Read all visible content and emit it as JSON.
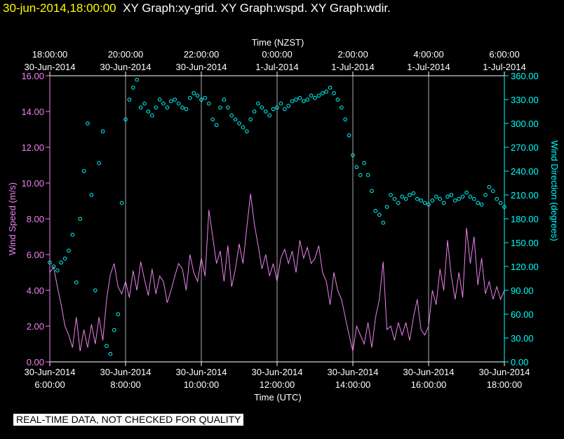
{
  "header": {
    "timestamp": "30-jun-2014,18:00:00",
    "graph_titles": "XY Graph:xy-grid.  XY Graph:wspd.  XY Graph:wdir."
  },
  "disclaimer": "REAL-TIME DATA, NOT CHECKED FOR QUALITY",
  "colors": {
    "background": "#000000",
    "axes": "#ffffff",
    "grid": "#ffffff",
    "wspd": "#ee82ee",
    "wdir": "#00ffff",
    "timestamp": "#ffff00",
    "disclaimer_bg": "#ffffff"
  },
  "chart_data": {
    "type": "line",
    "x_bottom": {
      "label": "Time (UTC)",
      "range_hours": [
        6,
        18
      ],
      "ticks": [
        {
          "h": 6,
          "line1": "30-Jun-2014",
          "line2": "6:00:00"
        },
        {
          "h": 8,
          "line1": "30-Jun-2014",
          "line2": "8:00:00"
        },
        {
          "h": 10,
          "line1": "30-Jun-2014",
          "line2": "10:00:00"
        },
        {
          "h": 12,
          "line1": "30-Jun-2014",
          "line2": "12:00:00"
        },
        {
          "h": 14,
          "line1": "30-Jun-2014",
          "line2": "14:00:00"
        },
        {
          "h": 16,
          "line1": "30-Jun-2014",
          "line2": "16:00:00"
        },
        {
          "h": 18,
          "line1": "30-Jun-2014",
          "line2": "18:00:00"
        }
      ]
    },
    "x_top": {
      "label": "Time (NZST)",
      "ticks": [
        {
          "h": 6,
          "line1": "18:00:00",
          "line2": "30-Jun-2014"
        },
        {
          "h": 8,
          "line1": "20:00:00",
          "line2": "30-Jun-2014"
        },
        {
          "h": 10,
          "line1": "22:00:00",
          "line2": "30-Jun-2014"
        },
        {
          "h": 12,
          "line1": "0:00:00",
          "line2": "1-Jul-2014"
        },
        {
          "h": 14,
          "line1": "2:00:00",
          "line2": "1-Jul-2014"
        },
        {
          "h": 16,
          "line1": "4:00:00",
          "line2": "1-Jul-2014"
        },
        {
          "h": 18,
          "line1": "6:00:00",
          "line2": "1-Jul-2014"
        }
      ]
    },
    "y_left": {
      "label": "Wind Speed (m/s)",
      "range": [
        0,
        16
      ],
      "ticks": [
        "0.00",
        "2.00",
        "4.00",
        "6.00",
        "8.00",
        "10.00",
        "12.00",
        "14.00",
        "16.00"
      ]
    },
    "y_right": {
      "label": "Wind Direction (degrees)",
      "range": [
        0,
        360
      ],
      "ticks": [
        "0.00",
        "30.00",
        "60.00",
        "90.00",
        "120.00",
        "150.00",
        "180.00",
        "210.00",
        "240.00",
        "270.00",
        "300.00",
        "330.00",
        "360.00"
      ]
    },
    "grid": true,
    "series": [
      {
        "key": "wspd",
        "style": "line",
        "axis": "left",
        "points": [
          [
            6.0,
            5.0
          ],
          [
            6.1,
            5.3
          ],
          [
            6.2,
            4.2
          ],
          [
            6.3,
            3.2
          ],
          [
            6.4,
            2.0
          ],
          [
            6.5,
            1.5
          ],
          [
            6.6,
            0.8
          ],
          [
            6.7,
            2.5
          ],
          [
            6.8,
            0.6
          ],
          [
            6.9,
            1.8
          ],
          [
            7.0,
            0.8
          ],
          [
            7.1,
            2.1
          ],
          [
            7.2,
            1.0
          ],
          [
            7.3,
            2.5
          ],
          [
            7.4,
            1.2
          ],
          [
            7.5,
            3.5
          ],
          [
            7.6,
            4.9
          ],
          [
            7.7,
            5.5
          ],
          [
            7.8,
            4.2
          ],
          [
            7.9,
            3.8
          ],
          [
            8.0,
            4.5
          ],
          [
            8.1,
            3.6
          ],
          [
            8.2,
            5.1
          ],
          [
            8.3,
            4.0
          ],
          [
            8.4,
            5.6
          ],
          [
            8.5,
            4.6
          ],
          [
            8.6,
            3.7
          ],
          [
            8.7,
            5.2
          ],
          [
            8.8,
            3.8
          ],
          [
            8.9,
            4.8
          ],
          [
            9.0,
            4.5
          ],
          [
            9.1,
            3.3
          ],
          [
            9.2,
            4.0
          ],
          [
            9.3,
            4.8
          ],
          [
            9.4,
            5.5
          ],
          [
            9.5,
            5.2
          ],
          [
            9.6,
            4.0
          ],
          [
            9.7,
            6.0
          ],
          [
            9.8,
            5.0
          ],
          [
            9.9,
            4.5
          ],
          [
            10.0,
            5.8
          ],
          [
            10.1,
            4.8
          ],
          [
            10.2,
            8.5
          ],
          [
            10.3,
            7.0
          ],
          [
            10.4,
            5.5
          ],
          [
            10.5,
            6.2
          ],
          [
            10.6,
            4.5
          ],
          [
            10.7,
            6.5
          ],
          [
            10.8,
            4.2
          ],
          [
            10.9,
            5.2
          ],
          [
            11.0,
            6.6
          ],
          [
            11.1,
            5.5
          ],
          [
            11.2,
            7.5
          ],
          [
            11.3,
            9.4
          ],
          [
            11.4,
            7.7
          ],
          [
            11.5,
            6.5
          ],
          [
            11.6,
            5.2
          ],
          [
            11.7,
            6.0
          ],
          [
            11.8,
            4.8
          ],
          [
            11.9,
            5.5
          ],
          [
            12.0,
            4.5
          ],
          [
            12.1,
            5.8
          ],
          [
            12.2,
            6.3
          ],
          [
            12.3,
            5.5
          ],
          [
            12.4,
            6.2
          ],
          [
            12.5,
            5.0
          ],
          [
            12.6,
            6.8
          ],
          [
            12.7,
            5.8
          ],
          [
            12.8,
            6.4
          ],
          [
            12.9,
            5.5
          ],
          [
            13.0,
            5.8
          ],
          [
            13.1,
            6.5
          ],
          [
            13.2,
            5.0
          ],
          [
            13.3,
            4.5
          ],
          [
            13.4,
            3.2
          ],
          [
            13.5,
            5.0
          ],
          [
            13.6,
            4.0
          ],
          [
            13.7,
            3.5
          ],
          [
            13.8,
            2.5
          ],
          [
            13.9,
            1.5
          ],
          [
            14.0,
            0.6
          ],
          [
            14.1,
            2.0
          ],
          [
            14.2,
            1.5
          ],
          [
            14.3,
            1.0
          ],
          [
            14.4,
            2.2
          ],
          [
            14.5,
            0.8
          ],
          [
            14.6,
            2.5
          ],
          [
            14.7,
            3.5
          ],
          [
            14.8,
            5.6
          ],
          [
            14.9,
            1.8
          ],
          [
            15.0,
            2.0
          ],
          [
            15.1,
            1.2
          ],
          [
            15.2,
            2.2
          ],
          [
            15.3,
            1.5
          ],
          [
            15.4,
            2.2
          ],
          [
            15.5,
            1.2
          ],
          [
            15.6,
            2.5
          ],
          [
            15.7,
            3.5
          ],
          [
            15.8,
            1.8
          ],
          [
            15.9,
            1.5
          ],
          [
            16.0,
            2.0
          ],
          [
            16.1,
            4.0
          ],
          [
            16.2,
            3.2
          ],
          [
            16.3,
            5.2
          ],
          [
            16.4,
            4.0
          ],
          [
            16.5,
            6.8
          ],
          [
            16.6,
            4.8
          ],
          [
            16.7,
            3.5
          ],
          [
            16.8,
            5.0
          ],
          [
            16.9,
            3.6
          ],
          [
            17.0,
            7.5
          ],
          [
            17.1,
            5.5
          ],
          [
            17.2,
            7.0
          ],
          [
            17.3,
            4.3
          ],
          [
            17.4,
            5.8
          ],
          [
            17.5,
            3.8
          ],
          [
            17.6,
            4.5
          ],
          [
            17.7,
            3.5
          ],
          [
            17.8,
            4.2
          ],
          [
            17.9,
            3.5
          ],
          [
            18.0,
            4.0
          ]
        ]
      },
      {
        "key": "wdir",
        "style": "markers",
        "axis": "right",
        "points": [
          [
            6.0,
            125
          ],
          [
            6.1,
            120
          ],
          [
            6.2,
            115
          ],
          [
            6.3,
            125
          ],
          [
            6.4,
            130
          ],
          [
            6.5,
            140
          ],
          [
            6.6,
            160
          ],
          [
            6.7,
            100
          ],
          [
            6.8,
            180
          ],
          [
            6.9,
            240
          ],
          [
            7.0,
            300
          ],
          [
            7.1,
            210
          ],
          [
            7.2,
            90
          ],
          [
            7.3,
            250
          ],
          [
            7.4,
            290
          ],
          [
            7.5,
            20
          ],
          [
            7.6,
            10
          ],
          [
            7.7,
            40
          ],
          [
            7.8,
            60
          ],
          [
            7.9,
            200
          ],
          [
            8.0,
            305
          ],
          [
            8.1,
            330
          ],
          [
            8.2,
            345
          ],
          [
            8.3,
            355
          ],
          [
            8.4,
            320
          ],
          [
            8.5,
            325
          ],
          [
            8.6,
            315
          ],
          [
            8.7,
            310
          ],
          [
            8.8,
            320
          ],
          [
            8.9,
            330
          ],
          [
            9.0,
            325
          ],
          [
            9.1,
            320
          ],
          [
            9.2,
            328
          ],
          [
            9.3,
            330
          ],
          [
            9.4,
            325
          ],
          [
            9.5,
            320
          ],
          [
            9.6,
            318
          ],
          [
            9.7,
            332
          ],
          [
            9.8,
            338
          ],
          [
            9.9,
            335
          ],
          [
            10.0,
            330
          ],
          [
            10.1,
            332
          ],
          [
            10.2,
            325
          ],
          [
            10.3,
            305
          ],
          [
            10.4,
            298
          ],
          [
            10.5,
            320
          ],
          [
            10.6,
            330
          ],
          [
            10.7,
            320
          ],
          [
            10.8,
            310
          ],
          [
            10.9,
            305
          ],
          [
            11.0,
            300
          ],
          [
            11.1,
            295
          ],
          [
            11.2,
            290
          ],
          [
            11.3,
            305
          ],
          [
            11.4,
            315
          ],
          [
            11.5,
            325
          ],
          [
            11.6,
            320
          ],
          [
            11.7,
            315
          ],
          [
            11.8,
            310
          ],
          [
            11.9,
            318
          ],
          [
            12.0,
            320
          ],
          [
            12.1,
            325
          ],
          [
            12.2,
            318
          ],
          [
            12.3,
            322
          ],
          [
            12.4,
            328
          ],
          [
            12.5,
            330
          ],
          [
            12.6,
            332
          ],
          [
            12.7,
            328
          ],
          [
            12.8,
            330
          ],
          [
            12.9,
            335
          ],
          [
            13.0,
            332
          ],
          [
            13.1,
            335
          ],
          [
            13.2,
            338
          ],
          [
            13.3,
            340
          ],
          [
            13.4,
            345
          ],
          [
            13.5,
            338
          ],
          [
            13.6,
            330
          ],
          [
            13.7,
            320
          ],
          [
            13.8,
            305
          ],
          [
            13.9,
            285
          ],
          [
            14.0,
            260
          ],
          [
            14.1,
            245
          ],
          [
            14.2,
            235
          ],
          [
            14.3,
            250
          ],
          [
            14.4,
            235
          ],
          [
            14.5,
            215
          ],
          [
            14.6,
            190
          ],
          [
            14.7,
            185
          ],
          [
            14.8,
            175
          ],
          [
            14.9,
            195
          ],
          [
            15.0,
            210
          ],
          [
            15.1,
            205
          ],
          [
            15.2,
            200
          ],
          [
            15.3,
            208
          ],
          [
            15.4,
            205
          ],
          [
            15.5,
            210
          ],
          [
            15.6,
            212
          ],
          [
            15.7,
            205
          ],
          [
            15.8,
            203
          ],
          [
            15.9,
            200
          ],
          [
            16.0,
            198
          ],
          [
            16.1,
            203
          ],
          [
            16.2,
            208
          ],
          [
            16.3,
            205
          ],
          [
            16.4,
            200
          ],
          [
            16.5,
            208
          ],
          [
            16.6,
            210
          ],
          [
            16.7,
            203
          ],
          [
            16.8,
            205
          ],
          [
            16.9,
            208
          ],
          [
            17.0,
            213
          ],
          [
            17.1,
            208
          ],
          [
            17.2,
            205
          ],
          [
            17.3,
            200
          ],
          [
            17.4,
            198
          ],
          [
            17.5,
            210
          ],
          [
            17.6,
            220
          ],
          [
            17.7,
            215
          ],
          [
            17.8,
            205
          ],
          [
            17.9,
            200
          ],
          [
            18.0,
            195
          ]
        ]
      }
    ]
  }
}
